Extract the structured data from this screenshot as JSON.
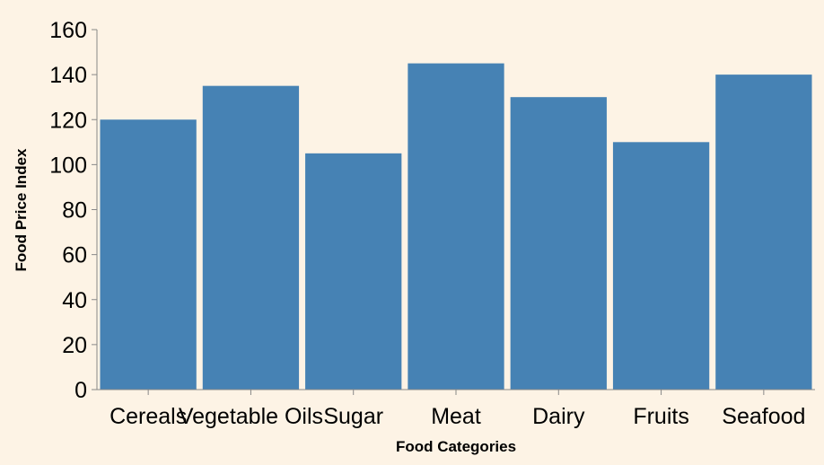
{
  "colors": {
    "background": "#fdf3e5",
    "bar": "#4682b4"
  },
  "chart_data": {
    "type": "bar",
    "categories": [
      "Cereals",
      "Vegetable Oils",
      "Sugar",
      "Meat",
      "Dairy",
      "Fruits",
      "Seafood"
    ],
    "values": [
      120,
      135,
      105,
      145,
      130,
      110,
      140
    ],
    "xlabel": "Food Categories",
    "ylabel": "Food Price Index",
    "ylim": [
      0,
      160
    ],
    "yticks": [
      0,
      20,
      40,
      60,
      80,
      100,
      120,
      140,
      160
    ],
    "grid": false,
    "legend": "none"
  }
}
